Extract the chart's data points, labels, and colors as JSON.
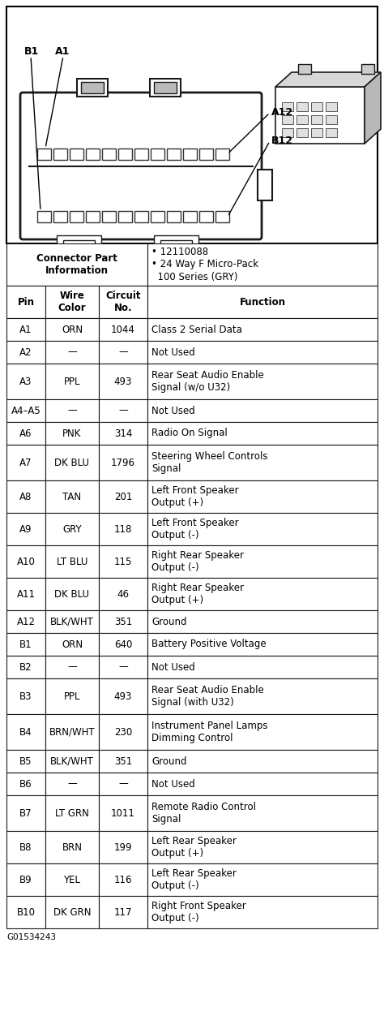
{
  "col_headers": [
    "Pin",
    "Wire\nColor",
    "Circuit\nNo.",
    "Function"
  ],
  "rows": [
    [
      "A1",
      "ORN",
      "1044",
      "Class 2 Serial Data"
    ],
    [
      "A2",
      "—",
      "—",
      "Not Used"
    ],
    [
      "A3",
      "PPL",
      "493",
      "Rear Seat Audio Enable\nSignal (w/o U32)"
    ],
    [
      "A4–A5",
      "—",
      "—",
      "Not Used"
    ],
    [
      "A6",
      "PNK",
      "314",
      "Radio On Signal"
    ],
    [
      "A7",
      "DK BLU",
      "1796",
      "Steering Wheel Controls\nSignal"
    ],
    [
      "A8",
      "TAN",
      "201",
      "Left Front Speaker\nOutput (+)"
    ],
    [
      "A9",
      "GRY",
      "118",
      "Left Front Speaker\nOutput (-)"
    ],
    [
      "A10",
      "LT BLU",
      "115",
      "Right Rear Speaker\nOutput (-)"
    ],
    [
      "A11",
      "DK BLU",
      "46",
      "Right Rear Speaker\nOutput (+)"
    ],
    [
      "A12",
      "BLK/WHT",
      "351",
      "Ground"
    ],
    [
      "B1",
      "ORN",
      "640",
      "Battery Positive Voltage"
    ],
    [
      "B2",
      "—",
      "—",
      "Not Used"
    ],
    [
      "B3",
      "PPL",
      "493",
      "Rear Seat Audio Enable\nSignal (with U32)"
    ],
    [
      "B4",
      "BRN/WHT",
      "230",
      "Instrument Panel Lamps\nDimming Control"
    ],
    [
      "B5",
      "BLK/WHT",
      "351",
      "Ground"
    ],
    [
      "B6",
      "—",
      "—",
      "Not Used"
    ],
    [
      "B7",
      "LT GRN",
      "1011",
      "Remote Radio Control\nSignal"
    ],
    [
      "B8",
      "BRN",
      "199",
      "Left Rear Speaker\nOutput (+)"
    ],
    [
      "B9",
      "YEL",
      "116",
      "Left Rear Speaker\nOutput (-)"
    ],
    [
      "B10",
      "DK GRN",
      "117",
      "Right Front Speaker\nOutput (-)"
    ]
  ],
  "footer_text": "G01534243",
  "bg_color": "#ffffff"
}
